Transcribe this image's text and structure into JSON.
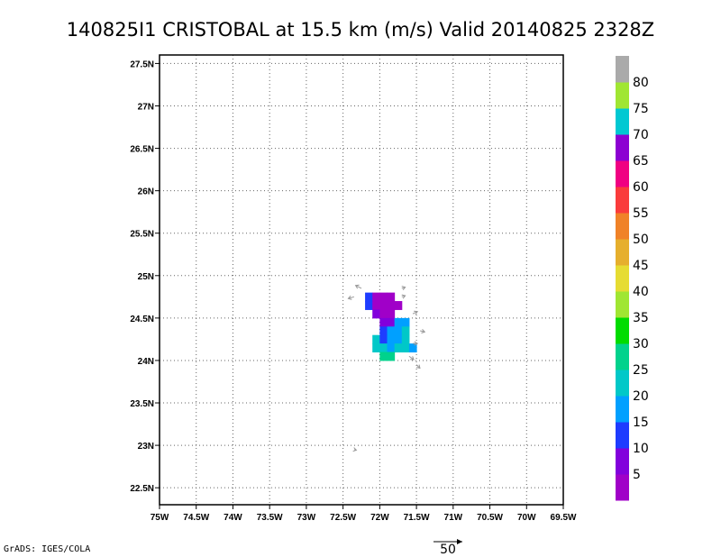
{
  "title": "140825I1 CRISTOBAL at 15.5 km (m/s) Valid 20140825 2328Z",
  "footer": "GrADS: IGES/COLA",
  "vector_scale_label": "50",
  "map": {
    "lon_range": [
      -75.0,
      -69.5
    ],
    "lat_range": [
      22.3,
      27.6
    ],
    "x_ticks": [
      "75W",
      "74.5W",
      "74W",
      "73.5W",
      "73W",
      "72.5W",
      "72W",
      "71.5W",
      "71W",
      "70.5W",
      "70W",
      "69.5W"
    ],
    "y_ticks": [
      "27.5N",
      "27N",
      "26.5N",
      "26N",
      "25.5N",
      "25N",
      "24.5N",
      "24N",
      "23.5N",
      "23N",
      "22.5N"
    ],
    "grid": true
  },
  "colorbar": {
    "labels": [
      "5",
      "10",
      "15",
      "20",
      "25",
      "30",
      "35",
      "40",
      "45",
      "50",
      "55",
      "60",
      "65",
      "70",
      "75",
      "80"
    ],
    "colors": [
      "#a000c8",
      "#8200dc",
      "#1e3cff",
      "#00a0ff",
      "#00c8c8",
      "#00d28c",
      "#00dc00",
      "#a0e632",
      "#e6dc32",
      "#e6af2d",
      "#f08228",
      "#fa3c3c",
      "#f00082",
      "#8c00d2",
      "#00c8d2",
      "#a0e632",
      "#aaaaaa"
    ]
  },
  "chart_data": {
    "type": "heatmap",
    "title": "140825I1 CRISTOBAL at 15.5 km (m/s) Valid 20140825 2328Z",
    "units": "m/s",
    "cells": [
      {
        "lon": -72.15,
        "lat": 24.75,
        "value": 12
      },
      {
        "lon": -72.05,
        "lat": 24.75,
        "value": 3
      },
      {
        "lon": -71.95,
        "lat": 24.75,
        "value": 4
      },
      {
        "lon": -71.85,
        "lat": 24.75,
        "value": 3
      },
      {
        "lon": -72.15,
        "lat": 24.65,
        "value": 14
      },
      {
        "lon": -72.05,
        "lat": 24.65,
        "value": 4
      },
      {
        "lon": -71.95,
        "lat": 24.65,
        "value": 3
      },
      {
        "lon": -71.85,
        "lat": 24.65,
        "value": 2
      },
      {
        "lon": -71.75,
        "lat": 24.65,
        "value": 4
      },
      {
        "lon": -72.05,
        "lat": 24.55,
        "value": 5
      },
      {
        "lon": -71.95,
        "lat": 24.55,
        "value": 4
      },
      {
        "lon": -71.85,
        "lat": 24.55,
        "value": 3
      },
      {
        "lon": -71.95,
        "lat": 24.45,
        "value": 5
      },
      {
        "lon": -71.85,
        "lat": 24.45,
        "value": 7
      },
      {
        "lon": -71.75,
        "lat": 24.45,
        "value": 18
      },
      {
        "lon": -71.65,
        "lat": 24.45,
        "value": 18
      },
      {
        "lon": -71.95,
        "lat": 24.35,
        "value": 11
      },
      {
        "lon": -71.85,
        "lat": 24.35,
        "value": 16
      },
      {
        "lon": -71.75,
        "lat": 24.35,
        "value": 19
      },
      {
        "lon": -71.65,
        "lat": 24.35,
        "value": 21
      },
      {
        "lon": -72.05,
        "lat": 24.25,
        "value": 22
      },
      {
        "lon": -71.95,
        "lat": 24.25,
        "value": 13
      },
      {
        "lon": -71.85,
        "lat": 24.25,
        "value": 17
      },
      {
        "lon": -71.75,
        "lat": 24.25,
        "value": 19
      },
      {
        "lon": -71.65,
        "lat": 24.25,
        "value": 22
      },
      {
        "lon": -72.05,
        "lat": 24.15,
        "value": 21
      },
      {
        "lon": -71.95,
        "lat": 24.15,
        "value": 23
      },
      {
        "lon": -71.85,
        "lat": 24.15,
        "value": 19
      },
      {
        "lon": -71.75,
        "lat": 24.15,
        "value": 21
      },
      {
        "lon": -71.65,
        "lat": 24.15,
        "value": 22
      },
      {
        "lon": -71.55,
        "lat": 24.15,
        "value": 19
      },
      {
        "lon": -71.95,
        "lat": 24.05,
        "value": 26
      },
      {
        "lon": -71.85,
        "lat": 24.05,
        "value": 28
      }
    ],
    "vectors": [
      {
        "lon": -72.25,
        "lat": 24.85,
        "u": -10,
        "v": 5
      },
      {
        "lon": -72.35,
        "lat": 24.75,
        "u": -10,
        "v": -3
      },
      {
        "lon": -71.7,
        "lat": 24.85,
        "u": 6,
        "v": 2
      },
      {
        "lon": -71.7,
        "lat": 24.75,
        "u": 6,
        "v": 2
      },
      {
        "lon": -71.55,
        "lat": 24.55,
        "u": 8,
        "v": 4
      },
      {
        "lon": -71.45,
        "lat": 24.35,
        "u": 8,
        "v": -2
      },
      {
        "lon": -71.6,
        "lat": 24.05,
        "u": 8,
        "v": -6
      },
      {
        "lon": -71.5,
        "lat": 23.95,
        "u": 6,
        "v": -6
      },
      {
        "lon": -71.55,
        "lat": 24.2,
        "u": 8,
        "v": 0
      },
      {
        "lon": -72.35,
        "lat": 22.95,
        "u": 4,
        "v": -1
      }
    ]
  }
}
